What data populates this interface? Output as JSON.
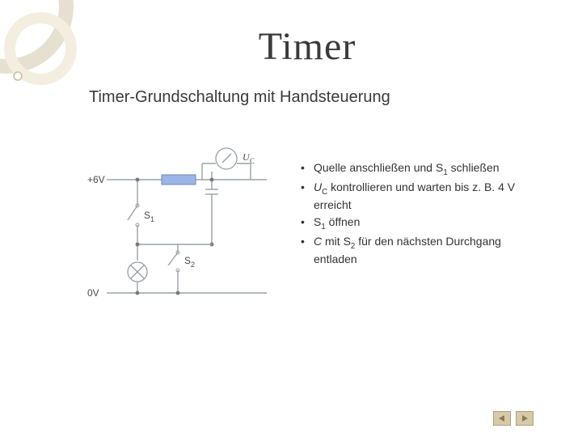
{
  "title": "Timer",
  "subtitle": "Timer-Grundschaltung mit Handsteuerung",
  "bullets": [
    {
      "pre": "Quelle anschließen und S",
      "sub": "1",
      "post": " schließen",
      "italic_pre": false
    },
    {
      "pre": "U",
      "sub": "C",
      "post": " kontrollieren und warten bis z. B. 4 V erreicht",
      "italic_pre": true
    },
    {
      "pre": "S",
      "sub": "1",
      "post": " öffnen",
      "italic_pre": false
    },
    {
      "pre": "C",
      "sub": "",
      "post": " mit S",
      "sub2": "2",
      "post2": " für den nächsten Durchgang entladen",
      "italic_pre": true
    }
  ],
  "circuit": {
    "top_rail_label": "+6V",
    "bottom_rail_label": "0V",
    "s1_label": "S₁",
    "s2_label": "S₂",
    "uc_label": "U_C",
    "colors": {
      "wire": "#9aa0a8",
      "resistor_fill": "#9bb5e6",
      "resistor_outline": "#6f86bb",
      "cap": "#9aa0a8",
      "lamp_outline": "#9aa0a8",
      "meter_outline": "#9aa0a8",
      "text": "#4a4a4a",
      "node": "#777"
    }
  },
  "decor": {
    "ring_outer": "#e6e0d0",
    "ring_inner": "#f3eedf",
    "dot_outline": "#cbbd99"
  },
  "nav": {
    "prev_icon": "triangle-left",
    "next_icon": "triangle-right",
    "fill": "#8a7a55"
  }
}
